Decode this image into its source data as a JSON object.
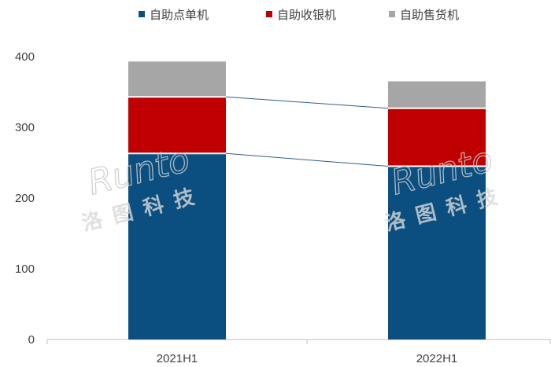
{
  "chart_data": {
    "type": "bar",
    "stacked": true,
    "categories": [
      "2021H1",
      "2022H1"
    ],
    "series": [
      {
        "name": "自助点单机",
        "values": [
          263,
          245
        ],
        "color": "#0b4f80"
      },
      {
        "name": "自助收银机",
        "values": [
          80,
          82
        ],
        "color": "#c00000"
      },
      {
        "name": "自助售货机",
        "values": [
          50,
          38
        ],
        "color": "#a6a6a6"
      }
    ],
    "yticks": [
      0,
      100,
      200,
      300,
      400
    ],
    "ylim": [
      0,
      400
    ],
    "grid": false,
    "legend_position": "top",
    "connector_lines": true
  },
  "watermark": {
    "latin": "Runto",
    "chinese": "洛图科技"
  }
}
